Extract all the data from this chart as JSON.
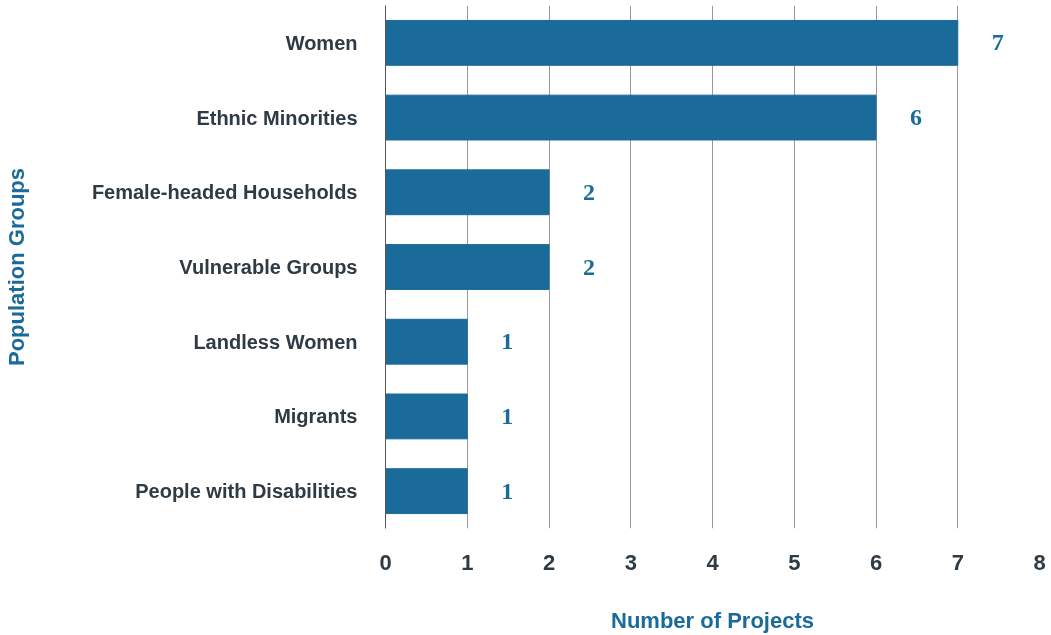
{
  "chart_data": {
    "type": "bar",
    "orientation": "horizontal",
    "categories": [
      "Women",
      "Ethnic Minorities",
      "Female-headed Households",
      "Vulnerable Groups",
      "Landless Women",
      "Migrants",
      "People with Disabilities"
    ],
    "values": [
      7,
      6,
      2,
      2,
      1,
      1,
      1
    ],
    "color": "#1a6a9a",
    "xlim": [
      0,
      8
    ],
    "xticks": [
      0,
      1,
      2,
      3,
      4,
      5,
      6,
      7,
      8
    ],
    "xlabel": "Number of Projects",
    "ylabel": "Population Groups",
    "grid": "x",
    "data_labels": true
  }
}
